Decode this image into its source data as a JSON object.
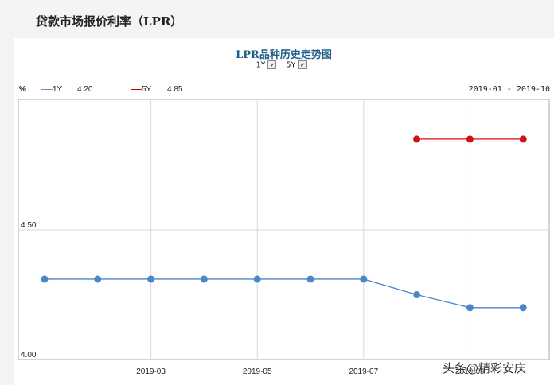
{
  "page": {
    "title": "贷款市场报价利率（LPR）"
  },
  "chart": {
    "title": "LPR品种历史走势图",
    "toggles": [
      {
        "label": "1Y",
        "checked": true
      },
      {
        "label": "5Y",
        "checked": true
      }
    ],
    "unit": "%",
    "legend": [
      {
        "name": "1Y",
        "value": "4.20",
        "color": "#5b9bd5"
      },
      {
        "name": "5Y",
        "value": "4.85",
        "color": "#c00000"
      }
    ],
    "range": "2019-01 - 2019-10"
  },
  "chart_data": {
    "type": "line",
    "title": "LPR品种历史走势图",
    "xlabel": "",
    "ylabel": "%",
    "x": [
      "2019-01",
      "2019-02",
      "2019-03",
      "2019-04",
      "2019-05",
      "2019-06",
      "2019-07",
      "2019-08",
      "2019-09",
      "2019-10"
    ],
    "x_tick_labels": [
      "2019-03",
      "2019-05",
      "2019-07",
      "2019-09"
    ],
    "y_tick_labels": [
      "4.00",
      "4.50"
    ],
    "ylim": [
      4.0,
      5.0
    ],
    "grid": true,
    "series": [
      {
        "name": "1Y",
        "color": "#4a86c8",
        "values": [
          4.31,
          4.31,
          4.31,
          4.31,
          4.31,
          4.31,
          4.31,
          4.25,
          4.2,
          4.2
        ]
      },
      {
        "name": "5Y",
        "color": "#d0101a",
        "values": [
          null,
          null,
          null,
          null,
          null,
          null,
          null,
          4.85,
          4.85,
          4.85
        ]
      }
    ],
    "legend_position": "top-left"
  },
  "watermark": "头条@精彩安庆"
}
